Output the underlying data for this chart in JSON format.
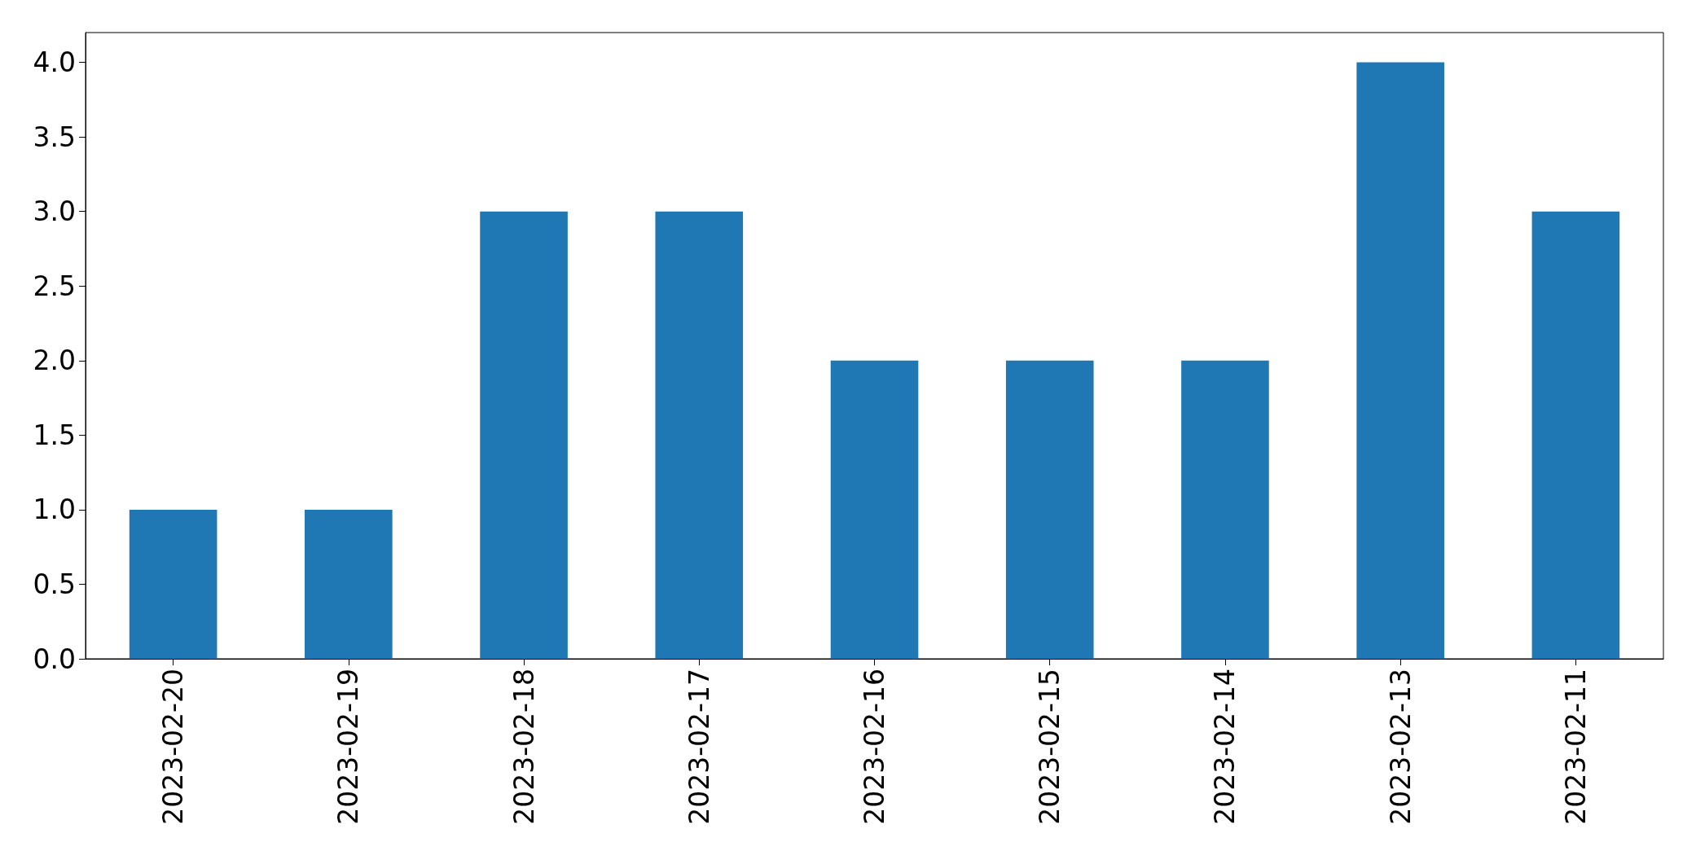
{
  "chart_data": {
    "type": "bar",
    "categories": [
      "2023-02-20",
      "2023-02-19",
      "2023-02-18",
      "2023-02-17",
      "2023-02-16",
      "2023-02-15",
      "2023-02-14",
      "2023-02-13",
      "2023-02-11"
    ],
    "values": [
      1,
      1,
      3,
      3,
      2,
      2,
      2,
      4,
      3
    ],
    "color": "#1f77b4",
    "ylim": [
      0,
      4.2
    ],
    "yticks": [
      {
        "value": 0,
        "label": "0.0"
      },
      {
        "value": 0.5,
        "label": "0.5"
      },
      {
        "value": 1,
        "label": "1.0"
      },
      {
        "value": 1.5,
        "label": "1.5"
      },
      {
        "value": 2,
        "label": "2.0"
      },
      {
        "value": 2.5,
        "label": "2.5"
      },
      {
        "value": 3,
        "label": "3.0"
      },
      {
        "value": 3.5,
        "label": "3.5"
      },
      {
        "value": 4,
        "label": "4.0"
      }
    ],
    "grid": false
  }
}
